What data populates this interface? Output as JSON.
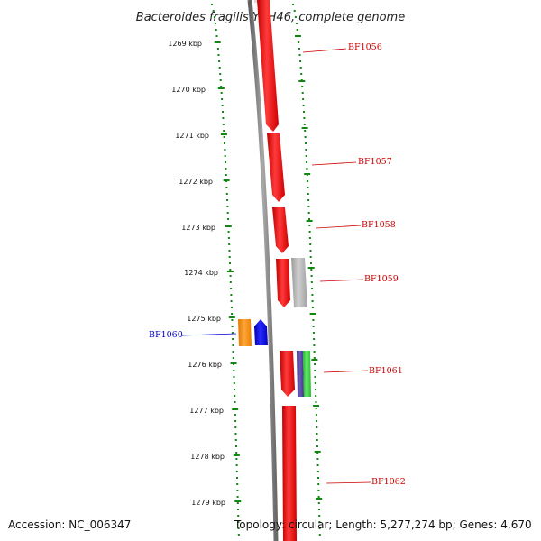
{
  "title": "Bacteroides fragilis YCH46, complete genome",
  "kbp_labels": [
    "1269 kbp",
    "1270 kbp",
    "1271 kbp",
    "1272 kbp",
    "1273 kbp",
    "1274 kbp",
    "1275 kbp",
    "1276 kbp",
    "1277 kbp",
    "1278 kbp",
    "1279 kbp"
  ],
  "genes": [
    {
      "label": "BF1056",
      "color": "#ff0000",
      "label_color": "#cc0000"
    },
    {
      "label": "BF1057",
      "color": "#ff0000",
      "label_color": "#cc0000"
    },
    {
      "label": "BF1058",
      "color": "#ff0000",
      "label_color": "#cc0000"
    },
    {
      "label": "BF1059",
      "color": "#ff0000",
      "label_color": "#cc0000"
    },
    {
      "label": "BF1060",
      "color": "#0000ff",
      "label_color": "#0000cc"
    },
    {
      "label": "BF1061",
      "color": "#ff0000",
      "label_color": "#cc0000"
    },
    {
      "label": "BF1062",
      "color": "#ff0000",
      "label_color": "#cc0000"
    }
  ],
  "colors": {
    "forward_gene": "#ff0000",
    "reverse_gene": "#0000ff",
    "backbone": "#808080",
    "ruler": "#118811",
    "orange_feature": "#ff8c00",
    "gray_feature": "#aaaaaa",
    "purple_feature": "#4b3f8f",
    "green_feature": "#2ecc40"
  },
  "footer": {
    "accession": "Accession: NC_006347",
    "topology": "Topology: circular; Length: 5,277,274 bp; Genes: 4,670"
  }
}
